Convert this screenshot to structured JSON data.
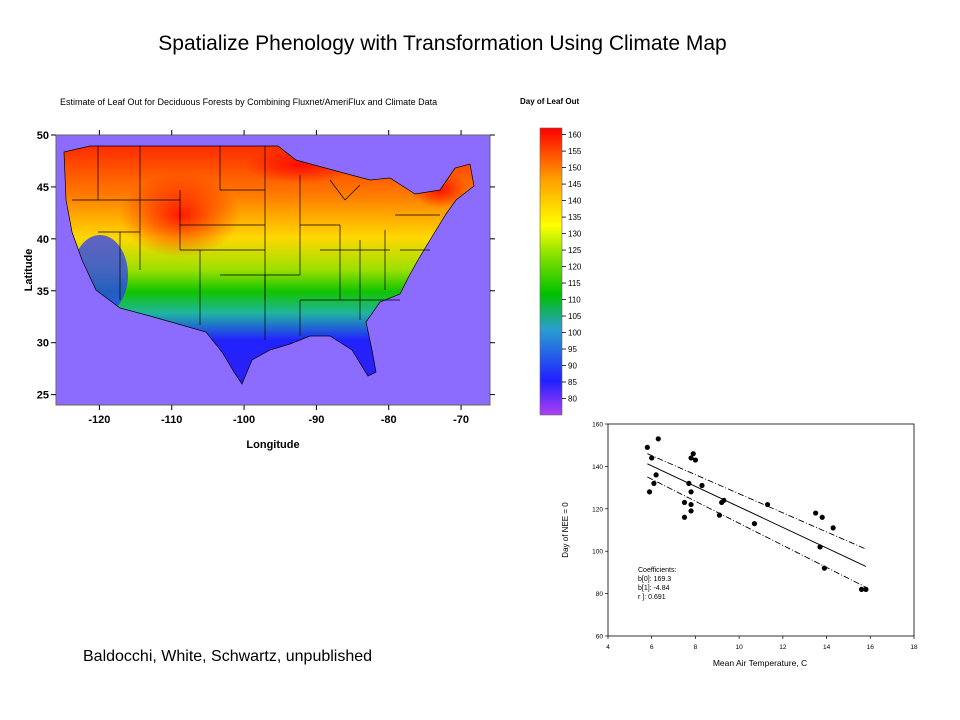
{
  "page": {
    "title": "Spatialize Phenology with Transformation Using Climate Map",
    "credit": "Baldocchi, White, Schwartz, unpublished"
  },
  "chart_data": [
    {
      "type": "heatmap",
      "title": "Estimate of Leaf Out for Deciduous Forests by Combining Fluxnet/AmeriFlux and Climate Data",
      "xlabel": "Longitude",
      "ylabel": "Latitude",
      "x_ticks": [
        -120,
        -110,
        -100,
        -90,
        -80,
        -70
      ],
      "y_ticks": [
        50,
        45,
        40,
        35,
        30,
        25
      ],
      "xlim": [
        -126,
        -66
      ],
      "ylim": [
        24,
        50
      ],
      "colorbar": {
        "title": "Day of Leaf Out",
        "ticks": [
          160,
          155,
          150,
          145,
          140,
          135,
          130,
          125,
          120,
          115,
          110,
          105,
          100,
          95,
          90,
          85,
          80
        ],
        "range": [
          75,
          162
        ],
        "colors": [
          "#b040f0",
          "#2020ff",
          "#2a9fd0",
          "#00c000",
          "#80e000",
          "#ffff00",
          "#ffa000",
          "#ff0000"
        ]
      },
      "background_color": "#8c6cff"
    },
    {
      "type": "scatter",
      "xlabel": "Mean Air Temperature, C",
      "ylabel": "Day of NEE = 0",
      "xlim": [
        4,
        18
      ],
      "ylim": [
        60,
        160
      ],
      "x_ticks": [
        4,
        6,
        8,
        10,
        12,
        14,
        16,
        18
      ],
      "y_ticks": [
        60,
        80,
        100,
        120,
        140,
        160
      ],
      "points": [
        [
          5.8,
          149
        ],
        [
          6.0,
          144
        ],
        [
          6.3,
          153
        ],
        [
          5.9,
          128
        ],
        [
          6.1,
          132
        ],
        [
          6.2,
          136
        ],
        [
          7.5,
          116
        ],
        [
          7.5,
          123
        ],
        [
          7.7,
          132
        ],
        [
          7.8,
          128
        ],
        [
          7.8,
          122
        ],
        [
          7.8,
          119
        ],
        [
          7.8,
          144
        ],
        [
          7.9,
          146
        ],
        [
          8.0,
          143
        ],
        [
          8.3,
          131
        ],
        [
          9.1,
          117
        ],
        [
          9.2,
          123
        ],
        [
          9.3,
          124
        ],
        [
          10.7,
          113
        ],
        [
          11.3,
          122
        ],
        [
          13.5,
          118
        ],
        [
          13.7,
          102
        ],
        [
          13.8,
          116
        ],
        [
          13.9,
          92
        ],
        [
          14.3,
          111
        ],
        [
          15.6,
          82
        ],
        [
          15.8,
          82
        ]
      ],
      "regression": {
        "x_range": [
          5.8,
          15.8
        ],
        "intercept": 169.3,
        "slope": -4.84
      },
      "confidence_upper": [
        [
          5.8,
          146
        ],
        [
          15.8,
          101
        ]
      ],
      "confidence_lower": [
        [
          5.8,
          135
        ],
        [
          15.8,
          83
        ]
      ],
      "annotation": {
        "heading": "Coefficients:",
        "b0": "b[0]: 169.3",
        "b1": "b[1]: -4.84",
        "r": "r ]:    0.691"
      }
    }
  ]
}
